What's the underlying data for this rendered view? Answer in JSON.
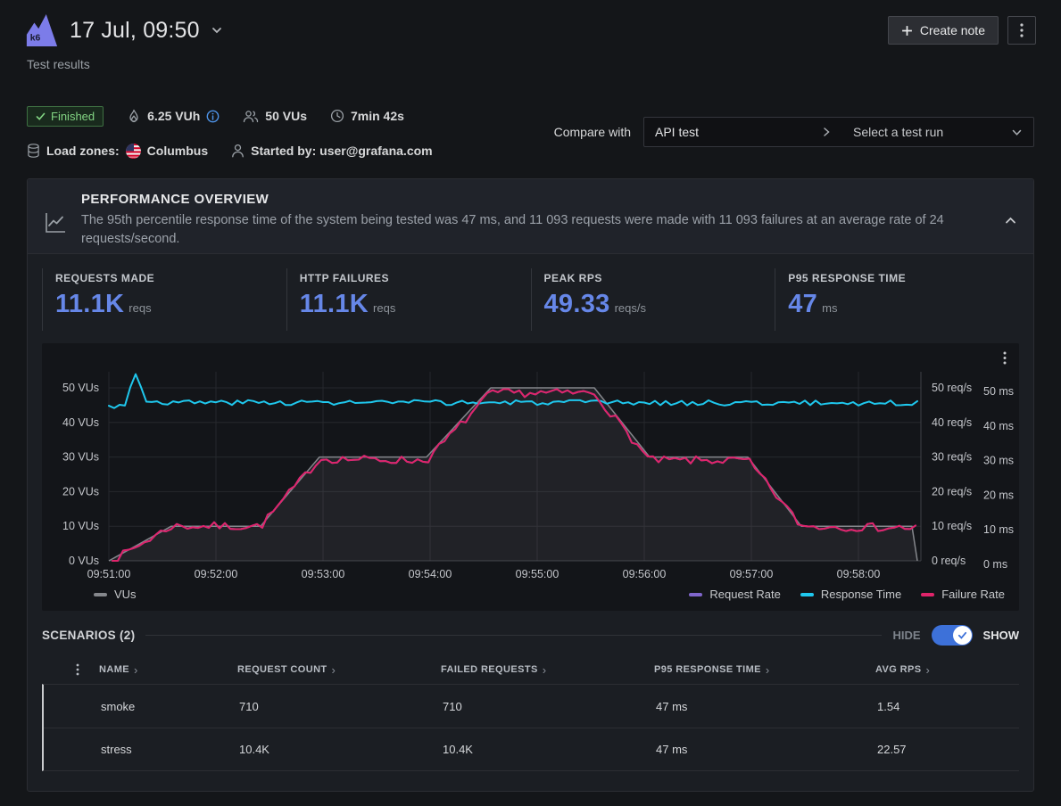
{
  "header": {
    "title": "17 Jul, 09:50",
    "subtitle": "Test results",
    "create_note_label": "Create note"
  },
  "meta": {
    "status": "Finished",
    "vuh": "6.25 VUh",
    "vus": "50 VUs",
    "duration": "7min 42s",
    "load_zones_label": "Load zones:",
    "load_zone": "Columbus",
    "started_by": "Started by: user@grafana.com",
    "compare_label": "Compare with",
    "compare_project": "API test",
    "compare_placeholder": "Select a test run"
  },
  "overview": {
    "title": "PERFORMANCE OVERVIEW",
    "description": "The 95th percentile response time of the system being tested was 47 ms, and 11 093 requests were made with 11 093 failures at an average rate of 24 requests/second.",
    "stats": [
      {
        "label": "REQUESTS MADE",
        "value": "11.1K",
        "unit": "reqs"
      },
      {
        "label": "HTTP FAILURES",
        "value": "11.1K",
        "unit": "reqs"
      },
      {
        "label": "PEAK RPS",
        "value": "49.33",
        "unit": "reqs/s"
      },
      {
        "label": "P95 RESPONSE TIME",
        "value": "47",
        "unit": "ms"
      }
    ]
  },
  "chart_data": {
    "type": "line",
    "title": "Performance overview timeseries",
    "grid": true,
    "legend_position": "bottom",
    "duration_s": 455,
    "x_ticks": [
      "09:51:00",
      "09:52:00",
      "09:53:00",
      "09:54:00",
      "09:55:00",
      "09:56:00",
      "09:57:00",
      "09:58:00"
    ],
    "left_axis": {
      "unit": "VUs",
      "ticks": [
        0,
        10,
        20,
        30,
        40,
        50
      ],
      "range": [
        0,
        50
      ]
    },
    "right_axis_1": {
      "unit": "req/s",
      "ticks": [
        0,
        10,
        20,
        30,
        40,
        50
      ],
      "range": [
        0,
        50
      ]
    },
    "right_axis_2": {
      "unit": "ms",
      "ticks": [
        0,
        10,
        20,
        30,
        40,
        50
      ],
      "range": [
        0,
        50
      ]
    },
    "series": [
      {
        "name": "VUs",
        "axis": "VUs",
        "type": "area",
        "color": "#85878c",
        "points": [
          [
            0,
            0
          ],
          [
            35,
            10
          ],
          [
            85,
            10
          ],
          [
            118,
            30
          ],
          [
            178,
            30
          ],
          [
            214,
            50
          ],
          [
            272,
            50
          ],
          [
            303,
            30
          ],
          [
            358,
            30
          ],
          [
            388,
            10
          ],
          [
            450,
            10
          ],
          [
            453,
            0
          ]
        ]
      },
      {
        "name": "Request Rate",
        "axis": "req/s",
        "type": "line",
        "color": "#8066cc",
        "noise": 2.4,
        "seed": 7,
        "points": [
          [
            2,
            0
          ],
          [
            35,
            10
          ],
          [
            85,
            10
          ],
          [
            118,
            29.5
          ],
          [
            178,
            29
          ],
          [
            214,
            48.5
          ],
          [
            272,
            48.5
          ],
          [
            303,
            29
          ],
          [
            358,
            29
          ],
          [
            388,
            10
          ],
          [
            452,
            9.5
          ]
        ]
      },
      {
        "name": "Response Time",
        "axis": "ms",
        "type": "line",
        "color": "#1fc8ee",
        "noise": 1.5,
        "seed": 3,
        "points": [
          [
            0,
            44.5
          ],
          [
            9,
            45.5
          ],
          [
            15,
            54
          ],
          [
            21,
            46.5
          ],
          [
            30,
            45.8
          ],
          [
            455,
            45.6
          ]
        ]
      },
      {
        "name": "Failure Rate",
        "axis": "req/s",
        "type": "line",
        "color": "#e0246a",
        "noise": 2.4,
        "seed": 7,
        "points": [
          [
            2,
            0
          ],
          [
            35,
            10
          ],
          [
            85,
            10
          ],
          [
            118,
            29.5
          ],
          [
            178,
            29
          ],
          [
            214,
            48.5
          ],
          [
            272,
            48.5
          ],
          [
            303,
            29
          ],
          [
            358,
            29
          ],
          [
            388,
            10
          ],
          [
            452,
            9.5
          ]
        ]
      }
    ]
  },
  "scenarios": {
    "title": "SCENARIOS (2)",
    "hide_label": "HIDE",
    "show_label": "SHOW",
    "table": {
      "sort_glyph": "›",
      "columns": [
        "NAME",
        "REQUEST COUNT",
        "FAILED REQUESTS",
        "P95 RESPONSE TIME",
        "AVG RPS"
      ],
      "rows": [
        {
          "name": "smoke",
          "request_count": "710",
          "failed_requests": "710",
          "p95": "47 ms",
          "avg_rps": "1.54"
        },
        {
          "name": "stress",
          "request_count": "10.4K",
          "failed_requests": "10.4K",
          "p95": "47 ms",
          "avg_rps": "22.57"
        }
      ]
    }
  },
  "colors": {
    "accent_blue": "#6687e8",
    "toggle_blue": "#3d71d9",
    "status_green": "#82d483",
    "purple": "#8066cc",
    "cyan": "#1fc8ee",
    "pink": "#e0246a",
    "logo_purple": "#7c7ce9"
  }
}
